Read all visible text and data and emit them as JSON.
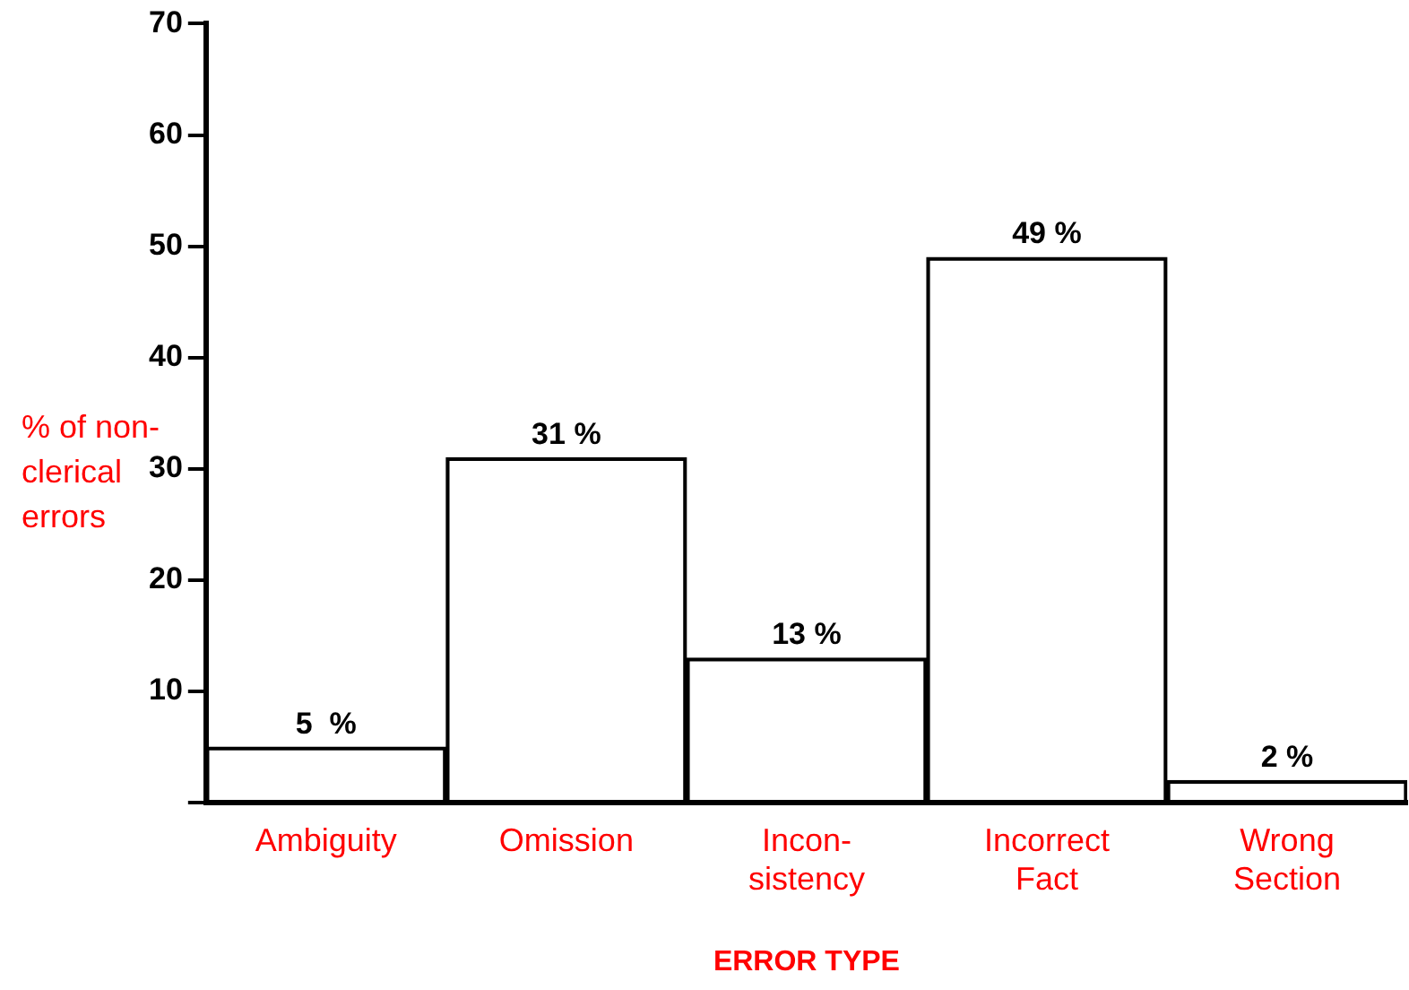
{
  "chart_data": {
    "type": "bar",
    "ylabel": "% of non-\nclerical\nerrors",
    "xlabel": "ERROR TYPE",
    "categories": [
      "Ambiguity",
      "Omission",
      "Incon-\nsistency",
      "Incorrect\nFact",
      "Wrong\nSection"
    ],
    "values": [
      5,
      31,
      13,
      49,
      2
    ],
    "value_labels": [
      "5  %",
      "31 %",
      "13 %",
      "49 %",
      "2 %"
    ],
    "color": "#000000",
    "ylim": [
      0,
      70
    ],
    "yticks": [
      {
        "value": 0,
        "label": null
      },
      10,
      20,
      30,
      40,
      50,
      60,
      70
    ]
  }
}
